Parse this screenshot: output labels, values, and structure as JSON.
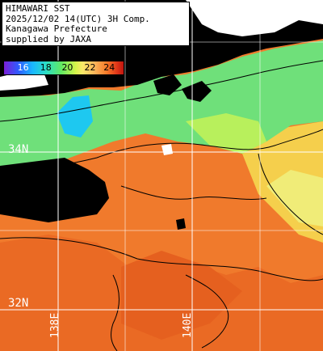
{
  "header": {
    "line1": "HIMAWARI SST",
    "line2": "2025/12/02 14(UTC) 3H Comp.",
    "line3": "Kanagawa Prefecture",
    "line4": "supplied by JAXA"
  },
  "legend": {
    "ticks": [
      "16",
      "18",
      "20",
      "22",
      "24"
    ],
    "colors": {
      "cold": "#7a1fd6",
      "mid": "#62ea62",
      "warm": "#fbe86a",
      "hot": "#e23a1a"
    }
  },
  "grid": {
    "lat_labels": [
      "34N",
      "32N"
    ],
    "lon_labels": [
      "138E",
      "140E"
    ]
  },
  "colors": {
    "land": "#000000",
    "cloud_mask": "#ffffff",
    "sea_warm": "#f0782a",
    "sea_cool": "#f5d04a",
    "sea_green": "#6fe07a",
    "grid_line": "#ffffff"
  }
}
